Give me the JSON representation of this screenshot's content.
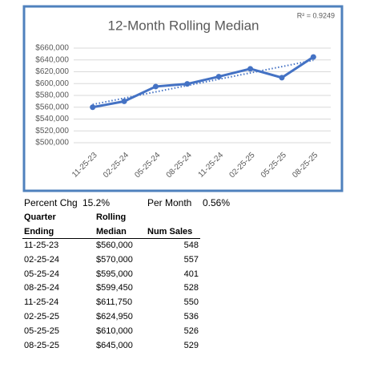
{
  "chart_data": {
    "type": "line",
    "title": "12-Month Rolling Median",
    "annotation": "R² = 0.9249",
    "categories": [
      "11-25-23",
      "02-25-24",
      "05-25-24",
      "08-25-24",
      "11-25-24",
      "02-25-25",
      "05-25-25",
      "08-25-25"
    ],
    "values": [
      560000,
      570000,
      595000,
      599450,
      611750,
      624950,
      610000,
      645000
    ],
    "color": "#4472c4",
    "trendline": true,
    "grid": true,
    "ylim": [
      500000,
      660000
    ],
    "yticks": [
      {
        "value": 500000,
        "label": "$500,000"
      },
      {
        "value": 520000,
        "label": "$520,000"
      },
      {
        "value": 540000,
        "label": "$540,000"
      },
      {
        "value": 560000,
        "label": "$560,000"
      },
      {
        "value": 580000,
        "label": "$580,000"
      },
      {
        "value": 600000,
        "label": "$600,000"
      },
      {
        "value": 620000,
        "label": "$620,000"
      },
      {
        "value": 640000,
        "label": "$640,000"
      },
      {
        "value": 660000,
        "label": "$660,000"
      }
    ]
  },
  "summary": {
    "percent_label": "Percent Chg",
    "percent_value": "15.2%",
    "month_label": "Per Month",
    "month_value": "0.56%"
  },
  "table": {
    "header": [
      [
        "Quarter",
        "Ending"
      ],
      [
        "Rolling",
        "Median"
      ],
      [
        "",
        "Num Sales"
      ]
    ],
    "rows": [
      [
        "11-25-23",
        "$560,000",
        "548"
      ],
      [
        "02-25-24",
        "$570,000",
        "557"
      ],
      [
        "05-25-24",
        "$595,000",
        "401"
      ],
      [
        "08-25-24",
        "$599,450",
        "528"
      ],
      [
        "11-25-24",
        "$611,750",
        "550"
      ],
      [
        "02-25-25",
        "$624,950",
        "536"
      ],
      [
        "05-25-25",
        "$610,000",
        "526"
      ],
      [
        "08-25-25",
        "$645,000",
        "529"
      ]
    ]
  }
}
